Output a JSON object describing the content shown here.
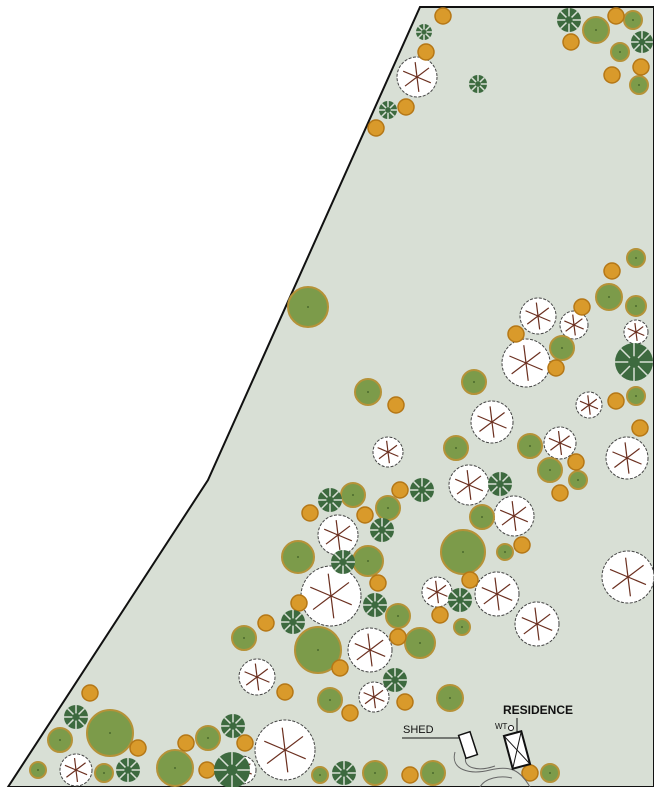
{
  "labels": {
    "residence": "RESIDENCE",
    "shed": "SHED",
    "water_tank": "WT"
  }
}
